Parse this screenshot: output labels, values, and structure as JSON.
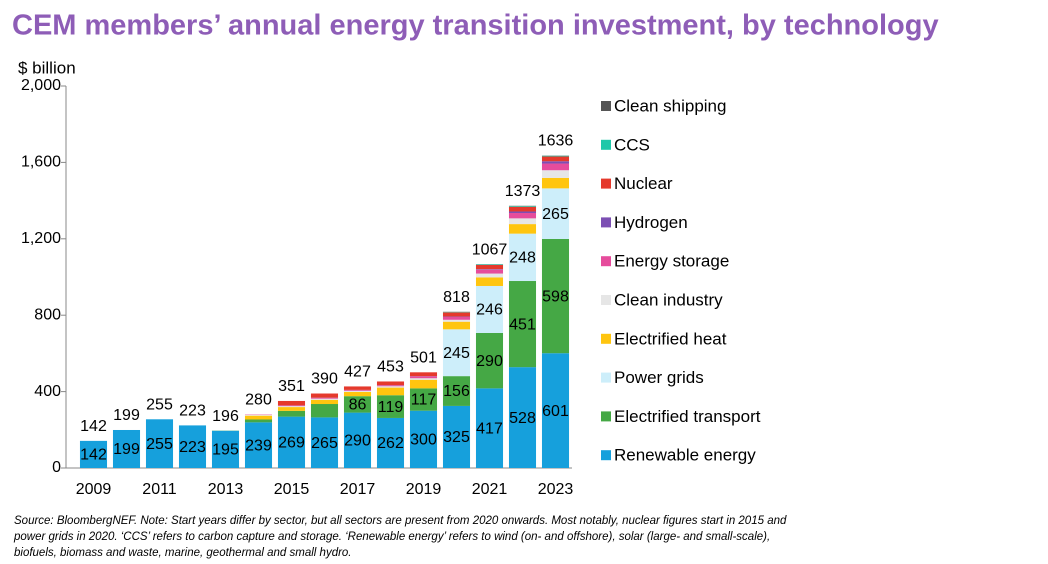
{
  "chart_data": {
    "type": "stacked-bar",
    "title": "CEM members’ annual energy transition investment, by technology",
    "y_label": "$ billion",
    "source": "Source: BloombergNEF. Note: Start years differ by sector, but all sectors are present from 2020 onwards. Most notably, nuclear figures start in 2015 and power grids in 2020. ‘CCS’ refers to carbon capture and storage. ‘Renewable energy’ refers to wind (on- and offshore), solar (large- and small-scale), biofuels, biomass and waste, marine, geothermal and small hydro.",
    "categories": [
      "2009",
      null,
      "2011",
      null,
      "2013",
      null,
      "2015",
      null,
      "2017",
      null,
      "2019",
      null,
      "2021",
      null,
      "2023"
    ],
    "totals": [
      142,
      199,
      255,
      223,
      196,
      280,
      351,
      390,
      427,
      453,
      501,
      818,
      1067,
      1373,
      1636
    ],
    "ylim": [
      0,
      2000
    ],
    "yticks": [
      0,
      400,
      800,
      {
        "value": 1200,
        "label": "1,200"
      },
      {
        "value": 1600,
        "label": "1,600"
      },
      {
        "value": 2000,
        "label": "2,000"
      }
    ],
    "grid": false,
    "legend": "right",
    "series": [
      {
        "name": "Renewable energy",
        "color": "#16a0dc",
        "values": [
          142,
          199,
          255,
          223,
          195,
          239,
          269,
          265,
          290,
          262,
          300,
          325,
          417,
          528,
          601
        ]
      },
      {
        "name": "Electrified transport",
        "color": "#45a845",
        "values": [
          0,
          0,
          0,
          0,
          1,
          15,
          30,
          70,
          86,
          119,
          117,
          156,
          290,
          451,
          598
        ]
      },
      {
        "name": "Power grids",
        "color": "#cdeefa",
        "values": [
          0,
          0,
          0,
          0,
          0,
          0,
          0,
          0,
          0,
          0,
          0,
          245,
          246,
          248,
          265
        ]
      },
      {
        "name": "Electrified heat",
        "color": "#ffc50f",
        "values": [
          0,
          0,
          0,
          0,
          0,
          20,
          20,
          22,
          22,
          40,
          45,
          40,
          45,
          50,
          55
        ]
      },
      {
        "name": "Clean industry",
        "color": "#e6e6e6",
        "values": [
          0,
          0,
          0,
          0,
          0,
          4,
          5,
          6,
          6,
          7,
          8,
          10,
          20,
          30,
          40
        ]
      },
      {
        "name": "Energy storage",
        "color": "#e64c9c",
        "values": [
          0,
          0,
          0,
          0,
          0,
          2,
          3,
          4,
          4,
          5,
          10,
          15,
          20,
          28,
          35
        ]
      },
      {
        "name": "Hydrogen",
        "color": "#7c4fb3",
        "values": [
          0,
          0,
          0,
          0,
          0,
          0,
          1,
          1,
          1,
          1,
          1,
          2,
          3,
          8,
          12
        ]
      },
      {
        "name": "Nuclear",
        "color": "#e5392c",
        "values": [
          0,
          0,
          0,
          0,
          0,
          0,
          23,
          22,
          18,
          19,
          20,
          22,
          22,
          25,
          25
        ]
      },
      {
        "name": "CCS",
        "color": "#1fc8a9",
        "values": [
          0,
          0,
          0,
          0,
          0,
          0,
          0,
          0,
          0,
          0,
          0,
          2,
          3,
          4,
          4
        ]
      },
      {
        "name": "Clean shipping",
        "color": "#555555",
        "values": [
          0,
          0,
          0,
          0,
          0,
          0,
          0,
          0,
          0,
          0,
          0,
          1,
          1,
          1,
          1
        ]
      }
    ]
  }
}
